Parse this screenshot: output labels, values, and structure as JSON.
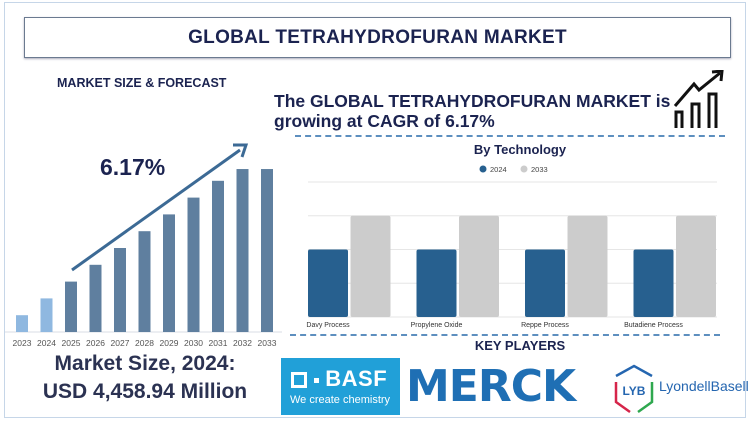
{
  "header": {
    "title": "GLOBAL TETRAHYDROFURAN MARKET"
  },
  "left": {
    "section_title": "MARKET SIZE & FORECAST",
    "cagr_label": "6.17%",
    "market_size_line1": "Market Size, 2024:",
    "market_size_line2": "USD 4,458.94 Million"
  },
  "headline": {
    "text": "The GLOBAL TETRAHYDROFURAN MARKET is growing at CAGR of 6.17%",
    "icon": "growth-chart-icon"
  },
  "key_players": {
    "title": "KEY PLAYERS",
    "basf_name": "BASF",
    "basf_tagline": "We create chemistry",
    "merck_name": "MERCK",
    "lyb_mark": "LYB",
    "lyb_name": "LyondellBasell"
  },
  "colors": {
    "navy": "#1b2350",
    "historic_bar": "#8fb8e0",
    "forecast_bar": "#5f7f9f",
    "series_2024": "#27608f",
    "series_2033": "#cccccc",
    "basf": "#21a0d8",
    "merck": "#1f6fb4"
  },
  "chart_data": [
    {
      "type": "bar",
      "title": "",
      "categories": [
        "2023",
        "2024",
        "2025",
        "2026",
        "2027",
        "2028",
        "2029",
        "2030",
        "2031",
        "2032",
        "2033"
      ],
      "values": [
        10,
        20,
        30,
        40,
        50,
        60,
        70,
        80,
        90,
        97,
        97
      ],
      "historic": [
        "2023",
        "2024"
      ],
      "annotation": "6.17%",
      "trend_arrow": true,
      "grid": false
    },
    {
      "type": "bar",
      "title": "By Technology",
      "categories": [
        "Davy Process",
        "Propylene Oxide",
        "Reppe Process",
        "Butadiene Process"
      ],
      "series": [
        {
          "name": "2024",
          "values": [
            2,
            2,
            2,
            2
          ]
        },
        {
          "name": "2033",
          "values": [
            3,
            3,
            3,
            3
          ]
        }
      ],
      "ylim": [
        0,
        4
      ],
      "grid": true,
      "legend": "top"
    }
  ]
}
